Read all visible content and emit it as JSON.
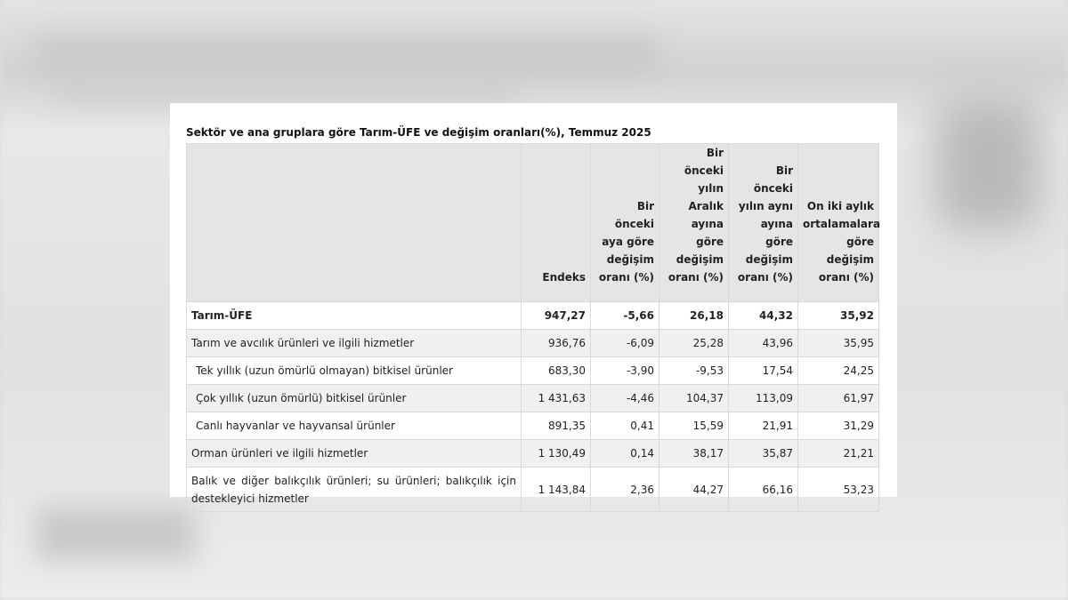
{
  "table": {
    "title": "Sektör ve ana gruplara göre Tarım-ÜFE ve değişim oranları(%), Temmuz 2025",
    "headers": [
      "",
      "Endeks",
      "Bir önceki aya göre değişim oranı (%)",
      "Bir önceki yılın Aralık ayına göre değişim oranı (%)",
      "Bir önceki yılın aynı ayına göre değişim oranı (%)",
      "On iki aylık ortalamalara göre değişim oranı (%)"
    ],
    "rows": [
      {
        "label": "Tarım-ÜFE",
        "endeks": "947,27",
        "aylik": "-5,66",
        "aralik": "26,18",
        "yillik": "44,32",
        "ortalama": "35,92"
      },
      {
        "label": "Tarım ve avcılık ürünleri ve ilgili hizmetler",
        "endeks": "936,76",
        "aylik": "-6,09",
        "aralik": "25,28",
        "yillik": "43,96",
        "ortalama": "35,95"
      },
      {
        "label": "Tek yıllık (uzun ömürlü olmayan) bitkisel ürünler",
        "endeks": "683,30",
        "aylik": "-3,90",
        "aralik": "-9,53",
        "yillik": "17,54",
        "ortalama": "24,25"
      },
      {
        "label": "Çok yıllık (uzun ömürlü) bitkisel ürünler",
        "endeks": "1 431,63",
        "aylik": "-4,46",
        "aralik": "104,37",
        "yillik": "113,09",
        "ortalama": "61,97"
      },
      {
        "label": "Canlı hayvanlar ve hayvansal ürünler",
        "endeks": "891,35",
        "aylik": "0,41",
        "aralik": "15,59",
        "yillik": "21,91",
        "ortalama": "31,29"
      },
      {
        "label": "Orman ürünleri ve ilgili hizmetler",
        "endeks": "1 130,49",
        "aylik": "0,14",
        "aralik": "38,17",
        "yillik": "35,87",
        "ortalama": "21,21"
      },
      {
        "label": "Balık ve diğer balıkçılık ürünleri; su ürünleri; balıkçılık için destekleyici hizmetler",
        "endeks": "1 143,84",
        "aylik": "2,36",
        "aralik": "44,27",
        "yillik": "66,16",
        "ortalama": "53,23"
      }
    ]
  }
}
